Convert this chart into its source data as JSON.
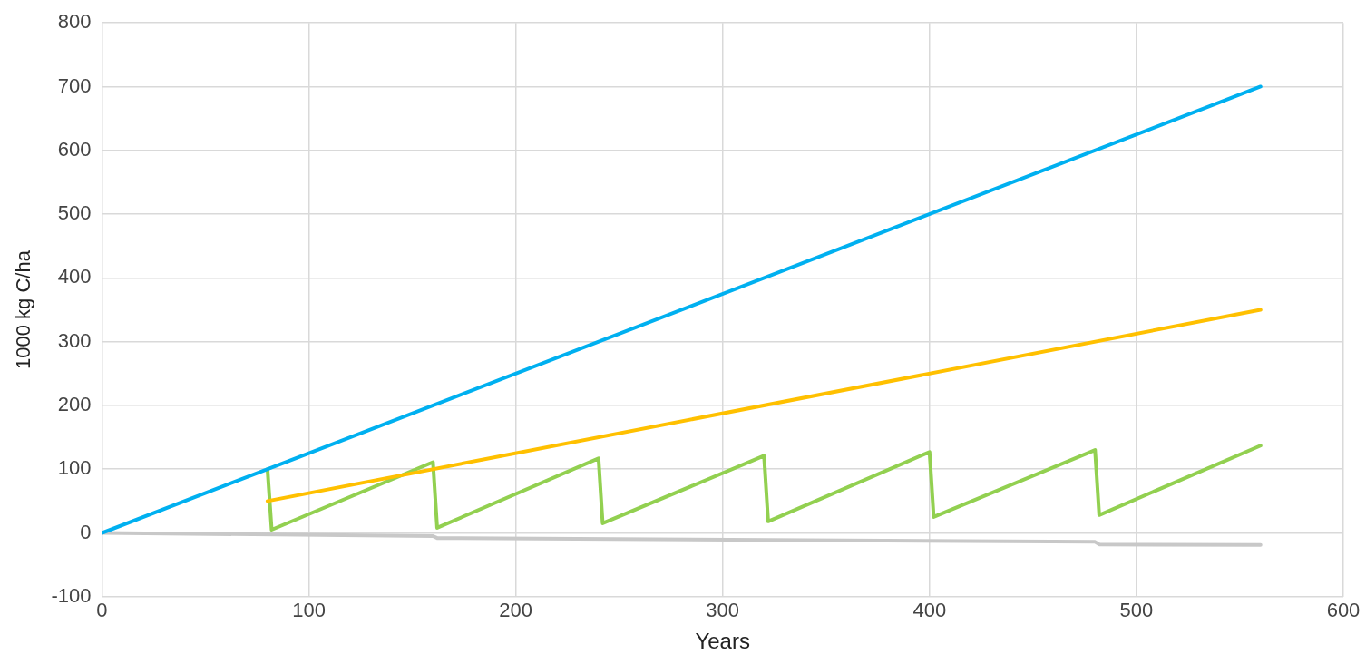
{
  "chart_data": {
    "type": "line",
    "xlabel": "Years",
    "ylabel": "1000 kg C/ha",
    "xlim": [
      0,
      600
    ],
    "xticks": [
      0,
      100,
      200,
      300,
      400,
      500,
      600
    ],
    "ylim": [
      -100,
      800
    ],
    "yticks": [
      -100,
      0,
      100,
      200,
      300,
      400,
      500,
      600,
      700,
      800
    ],
    "grid": true,
    "legend": false,
    "marker": "none",
    "line_style": "solid",
    "series": [
      {
        "color": "#00b0f0",
        "x": [
          0,
          560
        ],
        "values": [
          0,
          700
        ]
      },
      {
        "color": "#ffc000",
        "x": [
          80,
          560
        ],
        "values": [
          50,
          350
        ]
      },
      {
        "color": "#92d050",
        "x": [
          80,
          82,
          160,
          162,
          240,
          242,
          320,
          322,
          400,
          402,
          480,
          482,
          560
        ],
        "values": [
          100,
          5,
          111,
          8,
          117,
          15,
          121,
          18,
          127,
          25,
          130,
          28,
          137
        ]
      },
      {
        "color": "#c8c8c8",
        "x": [
          0,
          160,
          162,
          480,
          482,
          560
        ],
        "values": [
          0,
          -5,
          -8,
          -14,
          -18,
          -19
        ]
      }
    ]
  }
}
